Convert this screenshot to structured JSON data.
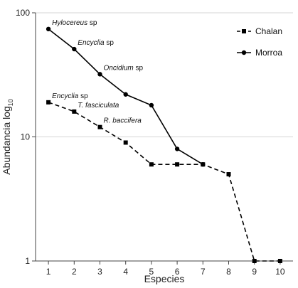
{
  "chart_data": {
    "type": "line",
    "xlabel": "Especies",
    "ylabel_main": "Abundancia log",
    "ylabel_sub": "10",
    "x": [
      1,
      2,
      3,
      4,
      5,
      6,
      7,
      8,
      9,
      10
    ],
    "xlim": [
      0.5,
      10.5
    ],
    "ylim": [
      1,
      100
    ],
    "yscale": "log",
    "yticks": [
      1,
      10,
      100
    ],
    "grid": "horizontal",
    "legend_position": "top-right",
    "series": [
      {
        "name": "Chalan",
        "style": "dashed",
        "marker": "square",
        "color": "#000000",
        "x": [
          1,
          2,
          3,
          4,
          5,
          6,
          7,
          8,
          9,
          10
        ],
        "values": [
          19,
          16,
          12,
          9,
          6,
          6,
          6,
          5,
          1,
          1
        ]
      },
      {
        "name": "Morroa",
        "style": "solid",
        "marker": "circle",
        "color": "#000000",
        "x": [
          1,
          2,
          3,
          4,
          5,
          6,
          7
        ],
        "values": [
          74,
          51,
          32,
          22,
          18,
          8,
          6
        ]
      }
    ],
    "annotations": [
      {
        "italic": "Hylocereus",
        "suffix": " sp",
        "x": 1,
        "y": 74
      },
      {
        "italic": "Encyclia",
        "suffix": " sp",
        "x": 2,
        "y": 51
      },
      {
        "italic": "Oncidium",
        "suffix": " sp",
        "x": 3,
        "y": 32
      },
      {
        "italic": "Encyclia",
        "suffix": " sp",
        "x": 1,
        "y": 19
      },
      {
        "italic": "T. fasciculata",
        "suffix": "",
        "x": 2,
        "y": 16
      },
      {
        "italic": "R. baccifera",
        "suffix": "",
        "x": 3,
        "y": 12
      }
    ]
  }
}
